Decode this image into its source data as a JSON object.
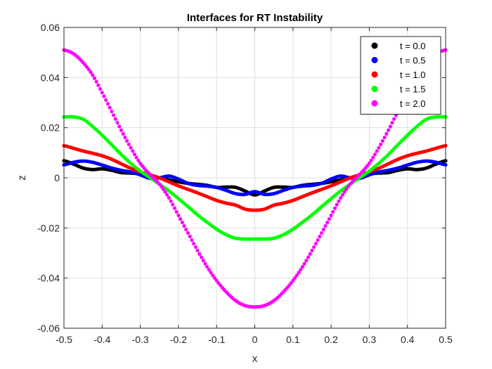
{
  "chart_data": {
    "type": "scatter",
    "title": "Interfaces for RT Instability",
    "xlabel": "x",
    "ylabel": "z",
    "xlim": [
      -0.5,
      0.5
    ],
    "ylim": [
      -0.06,
      0.06
    ],
    "xticks": [
      "-0.5",
      "-0.4",
      "-0.3",
      "-0.2",
      "-0.1",
      "0",
      "0.1",
      "0.2",
      "0.3",
      "0.4",
      "0.5"
    ],
    "yticks": [
      "-0.06",
      "-0.04",
      "-0.02",
      "0",
      "0.02",
      "0.04",
      "0.06"
    ],
    "grid": true,
    "legend_position": "top-right",
    "series": [
      {
        "name": "t = 0.0",
        "color": "#000000",
        "x": [
          -0.5,
          -0.475,
          -0.45,
          -0.425,
          -0.4,
          -0.375,
          -0.35,
          -0.325,
          -0.3,
          -0.275,
          -0.25,
          -0.225,
          -0.2,
          -0.175,
          -0.15,
          -0.125,
          -0.1,
          -0.075,
          -0.05,
          -0.025,
          0.0,
          0.025,
          0.05,
          0.075,
          0.1,
          0.125,
          0.15,
          0.175,
          0.2,
          0.225,
          0.25,
          0.275,
          0.3,
          0.325,
          0.35,
          0.375,
          0.4,
          0.425,
          0.45,
          0.475,
          0.5
        ],
        "y": [
          0.0068,
          0.0055,
          0.0039,
          0.0033,
          0.0036,
          0.003,
          0.0021,
          0.0019,
          0.0016,
          0.0008,
          0.0,
          -0.0008,
          -0.0016,
          -0.0022,
          -0.0026,
          -0.003,
          -0.0038,
          -0.0037,
          -0.0038,
          -0.0053,
          -0.0068,
          -0.0053,
          -0.0038,
          -0.0037,
          -0.0038,
          -0.003,
          -0.0026,
          -0.0022,
          -0.0016,
          -0.0008,
          0.0,
          0.0008,
          0.0016,
          0.0019,
          0.0021,
          0.003,
          0.0036,
          0.0033,
          0.0039,
          0.0055,
          0.0068
        ]
      },
      {
        "name": "t = 0.5",
        "color": "#0000ff",
        "x": [
          -0.5,
          -0.475,
          -0.45,
          -0.425,
          -0.4,
          -0.375,
          -0.35,
          -0.325,
          -0.3,
          -0.275,
          -0.25,
          -0.225,
          -0.2,
          -0.175,
          -0.15,
          -0.125,
          -0.1,
          -0.075,
          -0.05,
          -0.025,
          0.0,
          0.025,
          0.05,
          0.075,
          0.1,
          0.125,
          0.15,
          0.175,
          0.2,
          0.225,
          0.25,
          0.275,
          0.3,
          0.325,
          0.35,
          0.375,
          0.4,
          0.425,
          0.45,
          0.475,
          0.5
        ],
        "y": [
          0.0052,
          0.0062,
          0.0067,
          0.0062,
          0.0051,
          0.0039,
          0.003,
          0.0023,
          0.0012,
          -0.0002,
          0.0,
          0.0007,
          -0.0005,
          -0.0022,
          -0.003,
          -0.0033,
          -0.0038,
          -0.005,
          -0.0063,
          -0.0066,
          -0.0055,
          -0.0066,
          -0.0063,
          -0.005,
          -0.0038,
          -0.0033,
          -0.003,
          -0.0022,
          -0.0005,
          0.0007,
          0.0,
          -0.0002,
          0.0012,
          0.0023,
          0.003,
          0.0039,
          0.0051,
          0.0062,
          0.0067,
          0.0062,
          0.0052
        ]
      },
      {
        "name": "t = 1.0",
        "color": "#ff0000",
        "x": [
          -0.5,
          -0.475,
          -0.45,
          -0.425,
          -0.4,
          -0.375,
          -0.35,
          -0.325,
          -0.3,
          -0.275,
          -0.25,
          -0.225,
          -0.2,
          -0.175,
          -0.15,
          -0.125,
          -0.1,
          -0.075,
          -0.05,
          -0.025,
          0.0,
          0.025,
          0.05,
          0.075,
          0.1,
          0.125,
          0.15,
          0.175,
          0.2,
          0.225,
          0.25,
          0.275,
          0.3,
          0.325,
          0.35,
          0.375,
          0.4,
          0.425,
          0.45,
          0.475,
          0.5
        ],
        "y": [
          0.0128,
          0.0118,
          0.0107,
          0.0098,
          0.0088,
          0.0074,
          0.0056,
          0.0038,
          0.0024,
          0.0012,
          0.0,
          -0.0016,
          -0.0032,
          -0.0046,
          -0.006,
          -0.0075,
          -0.009,
          -0.0101,
          -0.0109,
          -0.0125,
          -0.0129,
          -0.0125,
          -0.0109,
          -0.0101,
          -0.009,
          -0.0075,
          -0.006,
          -0.0046,
          -0.0032,
          -0.0016,
          0.0,
          0.0012,
          0.0024,
          0.0038,
          0.0056,
          0.0074,
          0.0088,
          0.0098,
          0.0107,
          0.0118,
          0.0128
        ]
      },
      {
        "name": "t = 1.5",
        "color": "#00ff00",
        "x": [
          -0.5,
          -0.475,
          -0.45,
          -0.425,
          -0.4,
          -0.375,
          -0.35,
          -0.325,
          -0.3,
          -0.275,
          -0.25,
          -0.225,
          -0.2,
          -0.175,
          -0.15,
          -0.125,
          -0.1,
          -0.075,
          -0.05,
          -0.025,
          0.0,
          0.025,
          0.05,
          0.075,
          0.1,
          0.125,
          0.15,
          0.175,
          0.2,
          0.225,
          0.25,
          0.275,
          0.3,
          0.325,
          0.35,
          0.375,
          0.4,
          0.425,
          0.45,
          0.475,
          0.5
        ],
        "y": [
          0.0243,
          0.0243,
          0.0234,
          0.0205,
          0.017,
          0.0132,
          0.0093,
          0.0058,
          0.0027,
          0.0001,
          -0.0025,
          -0.0052,
          -0.0083,
          -0.0115,
          -0.0148,
          -0.0177,
          -0.0205,
          -0.0227,
          -0.0241,
          -0.0244,
          -0.0244,
          -0.0244,
          -0.0241,
          -0.0227,
          -0.0205,
          -0.0177,
          -0.0148,
          -0.0115,
          -0.0083,
          -0.0052,
          -0.0025,
          0.0001,
          0.0027,
          0.0058,
          0.0093,
          0.0132,
          0.017,
          0.0205,
          0.0234,
          0.0243,
          0.0243
        ]
      },
      {
        "name": "t = 2.0",
        "color": "#ff00ff",
        "x": [
          -0.5,
          -0.475,
          -0.45,
          -0.425,
          -0.4,
          -0.375,
          -0.35,
          -0.325,
          -0.3,
          -0.275,
          -0.25,
          -0.225,
          -0.2,
          -0.175,
          -0.15,
          -0.125,
          -0.1,
          -0.075,
          -0.05,
          -0.025,
          0.0,
          0.025,
          0.05,
          0.075,
          0.1,
          0.125,
          0.15,
          0.175,
          0.2,
          0.225,
          0.25,
          0.275,
          0.3,
          0.325,
          0.35,
          0.375,
          0.4,
          0.425,
          0.45,
          0.475,
          0.5
        ],
        "y": [
          0.051,
          0.0495,
          0.046,
          0.041,
          0.034,
          0.0265,
          0.019,
          0.012,
          0.0058,
          0.0014,
          -0.0025,
          -0.008,
          -0.015,
          -0.022,
          -0.029,
          -0.0355,
          -0.041,
          -0.0455,
          -0.049,
          -0.051,
          -0.0515,
          -0.051,
          -0.049,
          -0.0455,
          -0.041,
          -0.0355,
          -0.029,
          -0.022,
          -0.015,
          -0.008,
          -0.0025,
          0.0014,
          0.0058,
          0.012,
          0.019,
          0.0265,
          0.034,
          0.041,
          0.046,
          0.0495,
          0.051
        ]
      }
    ]
  }
}
